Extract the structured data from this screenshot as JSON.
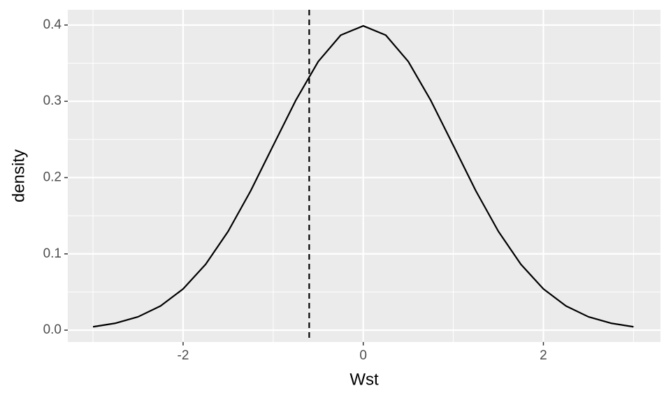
{
  "chart_data": {
    "type": "line",
    "x_label": "Wst",
    "y_label": "density",
    "x": [
      -3,
      -2.75,
      -2.5,
      -2.25,
      -2,
      -1.75,
      -1.5,
      -1.25,
      -1,
      -0.75,
      -0.5,
      -0.25,
      0,
      0.25,
      0.5,
      0.75,
      1,
      1.25,
      1.5,
      1.75,
      2,
      2.25,
      2.5,
      2.75,
      3
    ],
    "series": [
      {
        "color": "#000000",
        "values": [
          0.0044,
          0.0091,
          0.0175,
          0.0317,
          0.054,
          0.0863,
          0.1295,
          0.1826,
          0.242,
          0.3011,
          0.3521,
          0.3867,
          0.3989,
          0.3867,
          0.3521,
          0.3011,
          0.242,
          0.1826,
          0.1295,
          0.0863,
          0.054,
          0.0317,
          0.0175,
          0.0091,
          0.0044
        ]
      }
    ],
    "vline": -0.6,
    "xlim": [
      -3.28,
      3.3
    ],
    "ylim": [
      -0.0155,
      0.42
    ],
    "xticks": [
      -2,
      0,
      2
    ],
    "yticks": [
      {
        "value": 0,
        "label": "0.0"
      },
      0.1,
      0.2,
      0.3,
      0.4
    ],
    "x_minor": [
      -3,
      -1,
      1,
      3
    ],
    "y_minor": [
      0.05,
      0.15,
      0.25,
      0.35
    ],
    "grid": true
  }
}
